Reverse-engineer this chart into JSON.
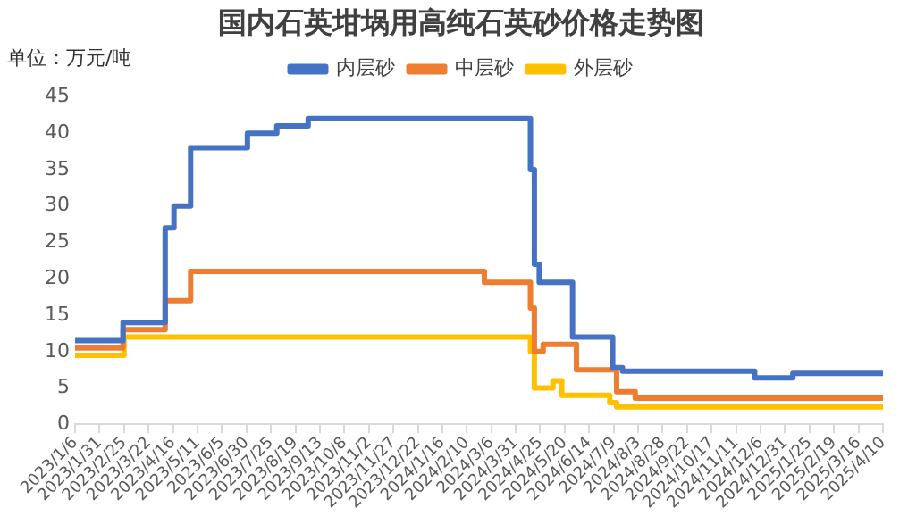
{
  "chart_data": {
    "type": "step",
    "title": "国内石英坩埚用高纯石英砂价格走势图",
    "ylabel": "单位：万元/吨",
    "xlim": [
      "2023-01-06",
      "2025-04-10"
    ],
    "xticks": [
      {
        "value": "2023-01-06",
        "label": "2023/1/6"
      },
      {
        "value": "2023-01-31",
        "label": "2023/1/31"
      },
      {
        "value": "2023-02-25",
        "label": "2023/2/25"
      },
      {
        "value": "2023-03-22",
        "label": "2023/3/22"
      },
      {
        "value": "2023-04-16",
        "label": "2023/4/16"
      },
      {
        "value": "2023-05-11",
        "label": "2023/5/11"
      },
      {
        "value": "2023-06-05",
        "label": "2023/6/5"
      },
      {
        "value": "2023-06-30",
        "label": "2023/6/30"
      },
      {
        "value": "2023-07-25",
        "label": "2023/7/25"
      },
      {
        "value": "2023-08-19",
        "label": "2023/8/19"
      },
      {
        "value": "2023-09-13",
        "label": "2023/9/13"
      },
      {
        "value": "2023-10-08",
        "label": "2023/10/8"
      },
      {
        "value": "2023-11-02",
        "label": "2023/11/2"
      },
      {
        "value": "2023-11-27",
        "label": "2023/11/27"
      },
      {
        "value": "2023-12-22",
        "label": "2023/12/22"
      },
      {
        "value": "2024-01-16",
        "label": "2024/1/16"
      },
      {
        "value": "2024-02-10",
        "label": "2024/2/10"
      },
      {
        "value": "2024-03-06",
        "label": "2024/3/6"
      },
      {
        "value": "2024-03-31",
        "label": "2024/3/31"
      },
      {
        "value": "2024-04-25",
        "label": "2024/4/25"
      },
      {
        "value": "2024-05-20",
        "label": "2024/5/20"
      },
      {
        "value": "2024-06-14",
        "label": "2024/6/14"
      },
      {
        "value": "2024-07-09",
        "label": "2024/7/9"
      },
      {
        "value": "2024-08-03",
        "label": "2024/8/3"
      },
      {
        "value": "2024-08-28",
        "label": "2024/8/28"
      },
      {
        "value": "2024-09-22",
        "label": "2024/9/22"
      },
      {
        "value": "2024-10-17",
        "label": "2024/10/17"
      },
      {
        "value": "2024-11-11",
        "label": "2024/11/11"
      },
      {
        "value": "2024-12-06",
        "label": "2024/12/6"
      },
      {
        "value": "2024-12-31",
        "label": "2024/12/31"
      },
      {
        "value": "2025-01-25",
        "label": "2025/1/25"
      },
      {
        "value": "2025-02-19",
        "label": "2025/2/19"
      },
      {
        "value": "2025-03-16",
        "label": "2025/3/16"
      },
      {
        "value": "2025-04-10",
        "label": "2025/4/10"
      }
    ],
    "ylim": [
      0,
      45
    ],
    "yticks": [
      0,
      5,
      10,
      15,
      20,
      25,
      30,
      35,
      40,
      45
    ],
    "grid": false,
    "legend": "top",
    "series": [
      {
        "name": "内层砂",
        "color": "#4472c4",
        "x": [
          "2023-01-06",
          "2023-02-24",
          "2023-04-08",
          "2023-04-17",
          "2023-05-04",
          "2023-07-01",
          "2023-07-31",
          "2023-09-01",
          "2024-04-15",
          "2024-04-19",
          "2024-04-24",
          "2024-05-28",
          "2024-07-08",
          "2024-07-18",
          "2024-11-30",
          "2025-01-08",
          "2025-04-10"
        ],
        "values": [
          11.5,
          14,
          27,
          30,
          38,
          40,
          41,
          42,
          35,
          22,
          19.5,
          12,
          7.8,
          7.3,
          6.4,
          7,
          7
        ]
      },
      {
        "name": "中层砂",
        "color": "#ed7d31",
        "x": [
          "2023-01-06",
          "2023-02-24",
          "2023-04-08",
          "2023-05-04",
          "2024-02-28",
          "2024-04-15",
          "2024-04-19",
          "2024-04-28",
          "2024-06-01",
          "2024-07-12",
          "2024-07-31",
          "2025-04-10"
        ],
        "values": [
          10.5,
          13,
          17,
          21,
          19.5,
          16,
          10,
          11,
          7.5,
          4.5,
          3.6,
          3.6
        ]
      },
      {
        "name": "外层砂",
        "color": "#ffc000",
        "x": [
          "2023-01-06",
          "2023-02-25",
          "2024-04-15",
          "2024-04-19",
          "2024-05-08",
          "2024-05-17",
          "2024-07-05",
          "2024-07-12",
          "2025-04-10"
        ],
        "values": [
          9.5,
          12,
          10,
          5,
          6,
          4,
          3,
          2.4,
          2.4
        ]
      }
    ]
  }
}
